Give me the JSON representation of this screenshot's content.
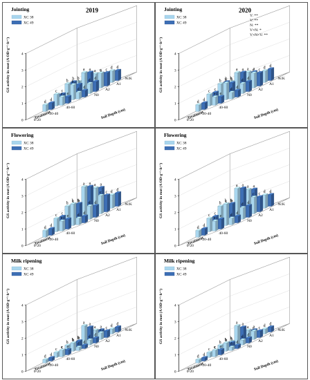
{
  "figure": {
    "ylabel": "GS activity in root (A OD·g⁻¹·h⁻¹)",
    "treatment_label": "Treatment",
    "depth_label": "Soil Depth (cm)",
    "treatments": [
      "NcK",
      "A1",
      "A2",
      "N0"
    ],
    "depths": [
      "0-20",
      "20-40",
      "40-60"
    ],
    "y_ticks": [
      "0",
      "1",
      "2",
      "3",
      "4"
    ],
    "legend": [
      "XC 38",
      "XC 49"
    ],
    "colors": {
      "xc38": "#a9d6ee",
      "xc49": "#3d6fb5"
    }
  },
  "chart_data": [
    {
      "type": "bar",
      "stage": "Jointing",
      "year": "2019",
      "ylim": [
        0,
        4
      ],
      "series": [
        {
          "name": "XC 38",
          "values": [
            [
              0.8,
              0.9,
              0.7
            ],
            [
              1.0,
              1.3,
              0.9
            ],
            [
              0.7,
              0.9,
              0.6
            ],
            [
              0.4,
              0.5,
              0.4
            ]
          ],
          "letters": [
            [
              "b",
              "a",
              "d"
            ],
            [
              "b",
              "a",
              "c"
            ],
            [
              "c",
              "b",
              "d"
            ],
            [
              "d",
              "e",
              "d"
            ]
          ]
        },
        {
          "name": "XC 49",
          "values": [
            [
              0.7,
              0.8,
              0.6
            ],
            [
              1.0,
              1.2,
              0.8
            ],
            [
              0.6,
              0.8,
              0.6
            ],
            [
              0.4,
              0.4,
              0.4
            ]
          ],
          "letters": [
            [
              "b",
              "a",
              "d"
            ],
            [
              "b",
              "a",
              "c"
            ],
            [
              "c",
              "b",
              "d"
            ],
            [
              "d",
              "e",
              "d"
            ]
          ]
        }
      ]
    },
    {
      "type": "bar",
      "stage": "Jointing",
      "year": "2020",
      "ylim": [
        0,
        4
      ],
      "stats": [
        "Y: **",
        "V: **",
        "N: **",
        "V×N: *",
        "V×N×Y: **"
      ],
      "series": [
        {
          "name": "XC 38",
          "values": [
            [
              0.8,
              1.0,
              0.7
            ],
            [
              1.0,
              1.3,
              0.9
            ],
            [
              0.7,
              1.0,
              0.6
            ],
            [
              0.4,
              0.5,
              0.4
            ]
          ],
          "letters": [
            [
              "b",
              "a",
              "d"
            ],
            [
              "b",
              "a",
              "c"
            ],
            [
              "c",
              "b",
              "d"
            ],
            [
              "d",
              "e",
              "d"
            ]
          ]
        },
        {
          "name": "XC 49",
          "values": [
            [
              0.8,
              0.9,
              0.7
            ],
            [
              1.0,
              1.2,
              0.8
            ],
            [
              0.7,
              0.9,
              0.6
            ],
            [
              0.4,
              0.4,
              0.4
            ]
          ],
          "letters": [
            [
              "b",
              "a",
              "d"
            ],
            [
              "b",
              "a",
              "c"
            ],
            [
              "c",
              "b",
              "d"
            ],
            [
              "d",
              "e",
              "d"
            ]
          ]
        }
      ]
    },
    {
      "type": "bar",
      "stage": "Flowering",
      "year": "",
      "ylim": [
        0,
        4
      ],
      "series": [
        {
          "name": "XC 38",
          "values": [
            [
              1.0,
              1.6,
              0.8
            ],
            [
              1.2,
              2.0,
              1.1
            ],
            [
              0.8,
              1.3,
              0.8
            ],
            [
              0.4,
              0.6,
              0.4
            ]
          ],
          "letters": [
            [
              "b",
              "a",
              "d"
            ],
            [
              "b",
              "a",
              "c"
            ],
            [
              "c",
              "b",
              "d"
            ],
            [
              "d",
              "e",
              "d"
            ]
          ]
        },
        {
          "name": "XC 49",
          "values": [
            [
              0.9,
              1.5,
              0.8
            ],
            [
              1.1,
              1.9,
              1.0
            ],
            [
              0.8,
              1.2,
              0.7
            ],
            [
              0.4,
              0.6,
              0.4
            ]
          ],
          "letters": [
            [
              "b",
              "a",
              "d"
            ],
            [
              "b",
              "a",
              "c"
            ],
            [
              "c",
              "b",
              "d"
            ],
            [
              "d",
              "e",
              "d"
            ]
          ]
        }
      ]
    },
    {
      "type": "bar",
      "stage": "Flowering",
      "year": "",
      "ylim": [
        0,
        4
      ],
      "series": [
        {
          "name": "XC 38",
          "values": [
            [
              1.0,
              1.5,
              0.8
            ],
            [
              1.2,
              1.9,
              1.0
            ],
            [
              0.8,
              1.3,
              0.7
            ],
            [
              0.4,
              0.6,
              0.4
            ]
          ],
          "letters": [
            [
              "b",
              "a",
              "d"
            ],
            [
              "b",
              "a",
              "c"
            ],
            [
              "c",
              "b",
              "d"
            ],
            [
              "d",
              "e",
              "d"
            ]
          ]
        },
        {
          "name": "XC 49",
          "values": [
            [
              0.9,
              1.4,
              0.7
            ],
            [
              1.1,
              1.8,
              0.9
            ],
            [
              0.8,
              1.2,
              0.7
            ],
            [
              0.4,
              0.6,
              0.4
            ]
          ],
          "letters": [
            [
              "b",
              "a",
              "d"
            ],
            [
              "b",
              "a",
              "c"
            ],
            [
              "c",
              "b",
              "d"
            ],
            [
              "d",
              "e",
              "d"
            ]
          ]
        }
      ]
    },
    {
      "type": "bar",
      "stage": "Milk ripening",
      "year": "",
      "ylim": [
        0,
        4
      ],
      "series": [
        {
          "name": "XC 38",
          "values": [
            [
              0.3,
              0.6,
              0.3
            ],
            [
              0.4,
              1.2,
              0.4
            ],
            [
              0.3,
              0.5,
              0.3
            ],
            [
              0.2,
              0.4,
              0.2
            ]
          ],
          "letters": [
            [
              "b",
              "a",
              "d"
            ],
            [
              "b",
              "a",
              "c"
            ],
            [
              "c",
              "b",
              "d"
            ],
            [
              "d",
              "e",
              "d"
            ]
          ]
        },
        {
          "name": "XC 49",
          "values": [
            [
              0.3,
              0.5,
              0.3
            ],
            [
              0.4,
              1.0,
              0.4
            ],
            [
              0.3,
              0.5,
              0.3
            ],
            [
              0.2,
              0.3,
              0.2
            ]
          ],
          "letters": [
            [
              "b",
              "a",
              "d"
            ],
            [
              "b",
              "a",
              "c"
            ],
            [
              "c",
              "b",
              "d"
            ],
            [
              "d",
              "e",
              "d"
            ]
          ]
        }
      ]
    },
    {
      "type": "bar",
      "stage": "Milk ripening",
      "year": "",
      "ylim": [
        0,
        4
      ],
      "series": [
        {
          "name": "XC 38",
          "values": [
            [
              0.3,
              0.6,
              0.3
            ],
            [
              0.4,
              1.2,
              0.5
            ],
            [
              0.3,
              0.5,
              0.3
            ],
            [
              0.2,
              0.4,
              0.2
            ]
          ],
          "letters": [
            [
              "b",
              "a",
              "d"
            ],
            [
              "b",
              "a",
              "c"
            ],
            [
              "c",
              "b",
              "d"
            ],
            [
              "d",
              "e",
              "d"
            ]
          ]
        },
        {
          "name": "XC 49",
          "values": [
            [
              0.3,
              0.5,
              0.3
            ],
            [
              0.4,
              1.0,
              0.4
            ],
            [
              0.3,
              0.4,
              0.3
            ],
            [
              0.2,
              0.3,
              0.2
            ]
          ],
          "letters": [
            [
              "b",
              "a",
              "d"
            ],
            [
              "b",
              "a",
              "c"
            ],
            [
              "c",
              "b",
              "d"
            ],
            [
              "d",
              "e",
              "d"
            ]
          ]
        }
      ]
    }
  ]
}
